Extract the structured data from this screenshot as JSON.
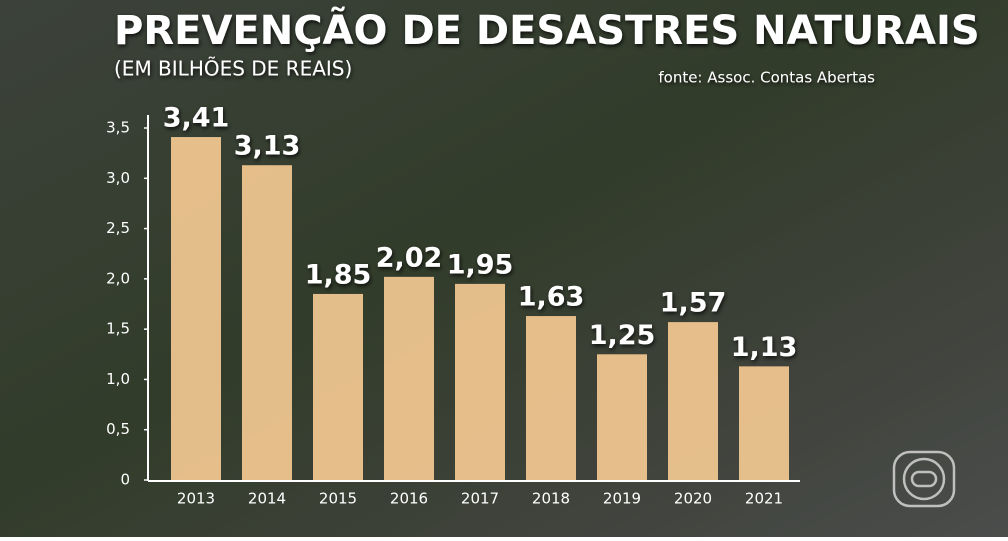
{
  "chart_data": {
    "type": "bar",
    "title": "PREVENÇÃO DE DESASTRES NATURAIS",
    "subtitle": "(EM BILHÕES DE REAIS)",
    "source": "fonte: Assoc. Contas Abertas",
    "categories": [
      "2013",
      "2014",
      "2015",
      "2016",
      "2017",
      "2018",
      "2019",
      "2020",
      "2021"
    ],
    "values": [
      3.41,
      3.13,
      1.85,
      2.02,
      1.95,
      1.63,
      1.25,
      1.57,
      1.13
    ],
    "value_labels": [
      "3,41",
      "3,13",
      "1,85",
      "2,02",
      "1,95",
      "1,63",
      "1,25",
      "1,57",
      "1,13"
    ],
    "color": "#f2c891",
    "ylim": [
      0,
      3.5
    ],
    "yticks": [
      0,
      {
        "value": 0.5,
        "label": "0,5"
      },
      {
        "value": 1,
        "label": "1,0"
      },
      {
        "value": 1.5,
        "label": "1,5"
      },
      {
        "value": 2,
        "label": "2,0"
      },
      {
        "value": 2.5,
        "label": "2,5"
      },
      {
        "value": 3,
        "label": "3,0"
      },
      {
        "value": 3.5,
        "label": "3,5"
      }
    ],
    "grid": false
  }
}
